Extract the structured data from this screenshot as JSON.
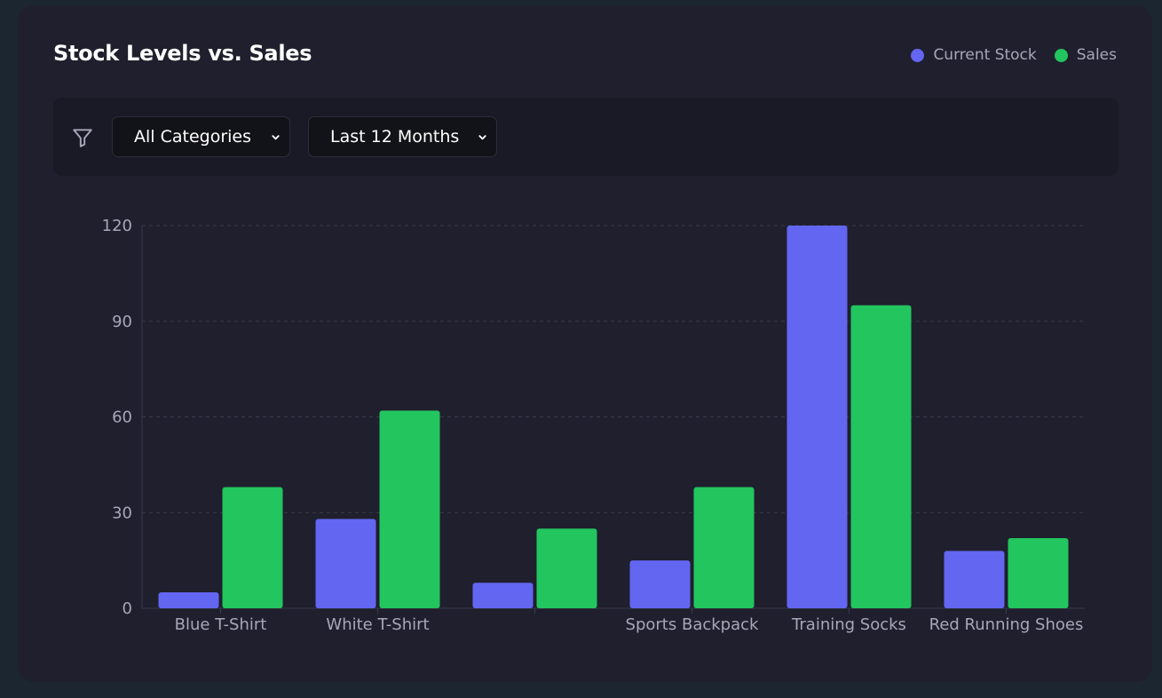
{
  "header": {
    "title": "Stock Levels vs. Sales"
  },
  "legend": [
    {
      "label": "Current Stock",
      "color": "#6366f1"
    },
    {
      "label": "Sales",
      "color": "#22c55e"
    }
  ],
  "filters": {
    "icon": "filter-icon",
    "category": {
      "value": "All Categories"
    },
    "period": {
      "value": "Last 12 Months"
    }
  },
  "chart_data": {
    "type": "bar",
    "categories": [
      "Blue T-Shirt",
      "White T-Shirt",
      "",
      "Sports Backpack",
      "Training Socks",
      "Red Running Shoes"
    ],
    "series": [
      {
        "name": "Current Stock",
        "color": "#6366f1",
        "values": [
          5,
          28,
          8,
          15,
          120,
          18
        ]
      },
      {
        "name": "Sales",
        "color": "#22c55e",
        "values": [
          38,
          62,
          25,
          38,
          95,
          22
        ]
      }
    ],
    "yticks": [
      0,
      30,
      60,
      90,
      120
    ],
    "ylim": [
      0,
      120
    ],
    "grid": true,
    "legend_position": "top-right"
  }
}
